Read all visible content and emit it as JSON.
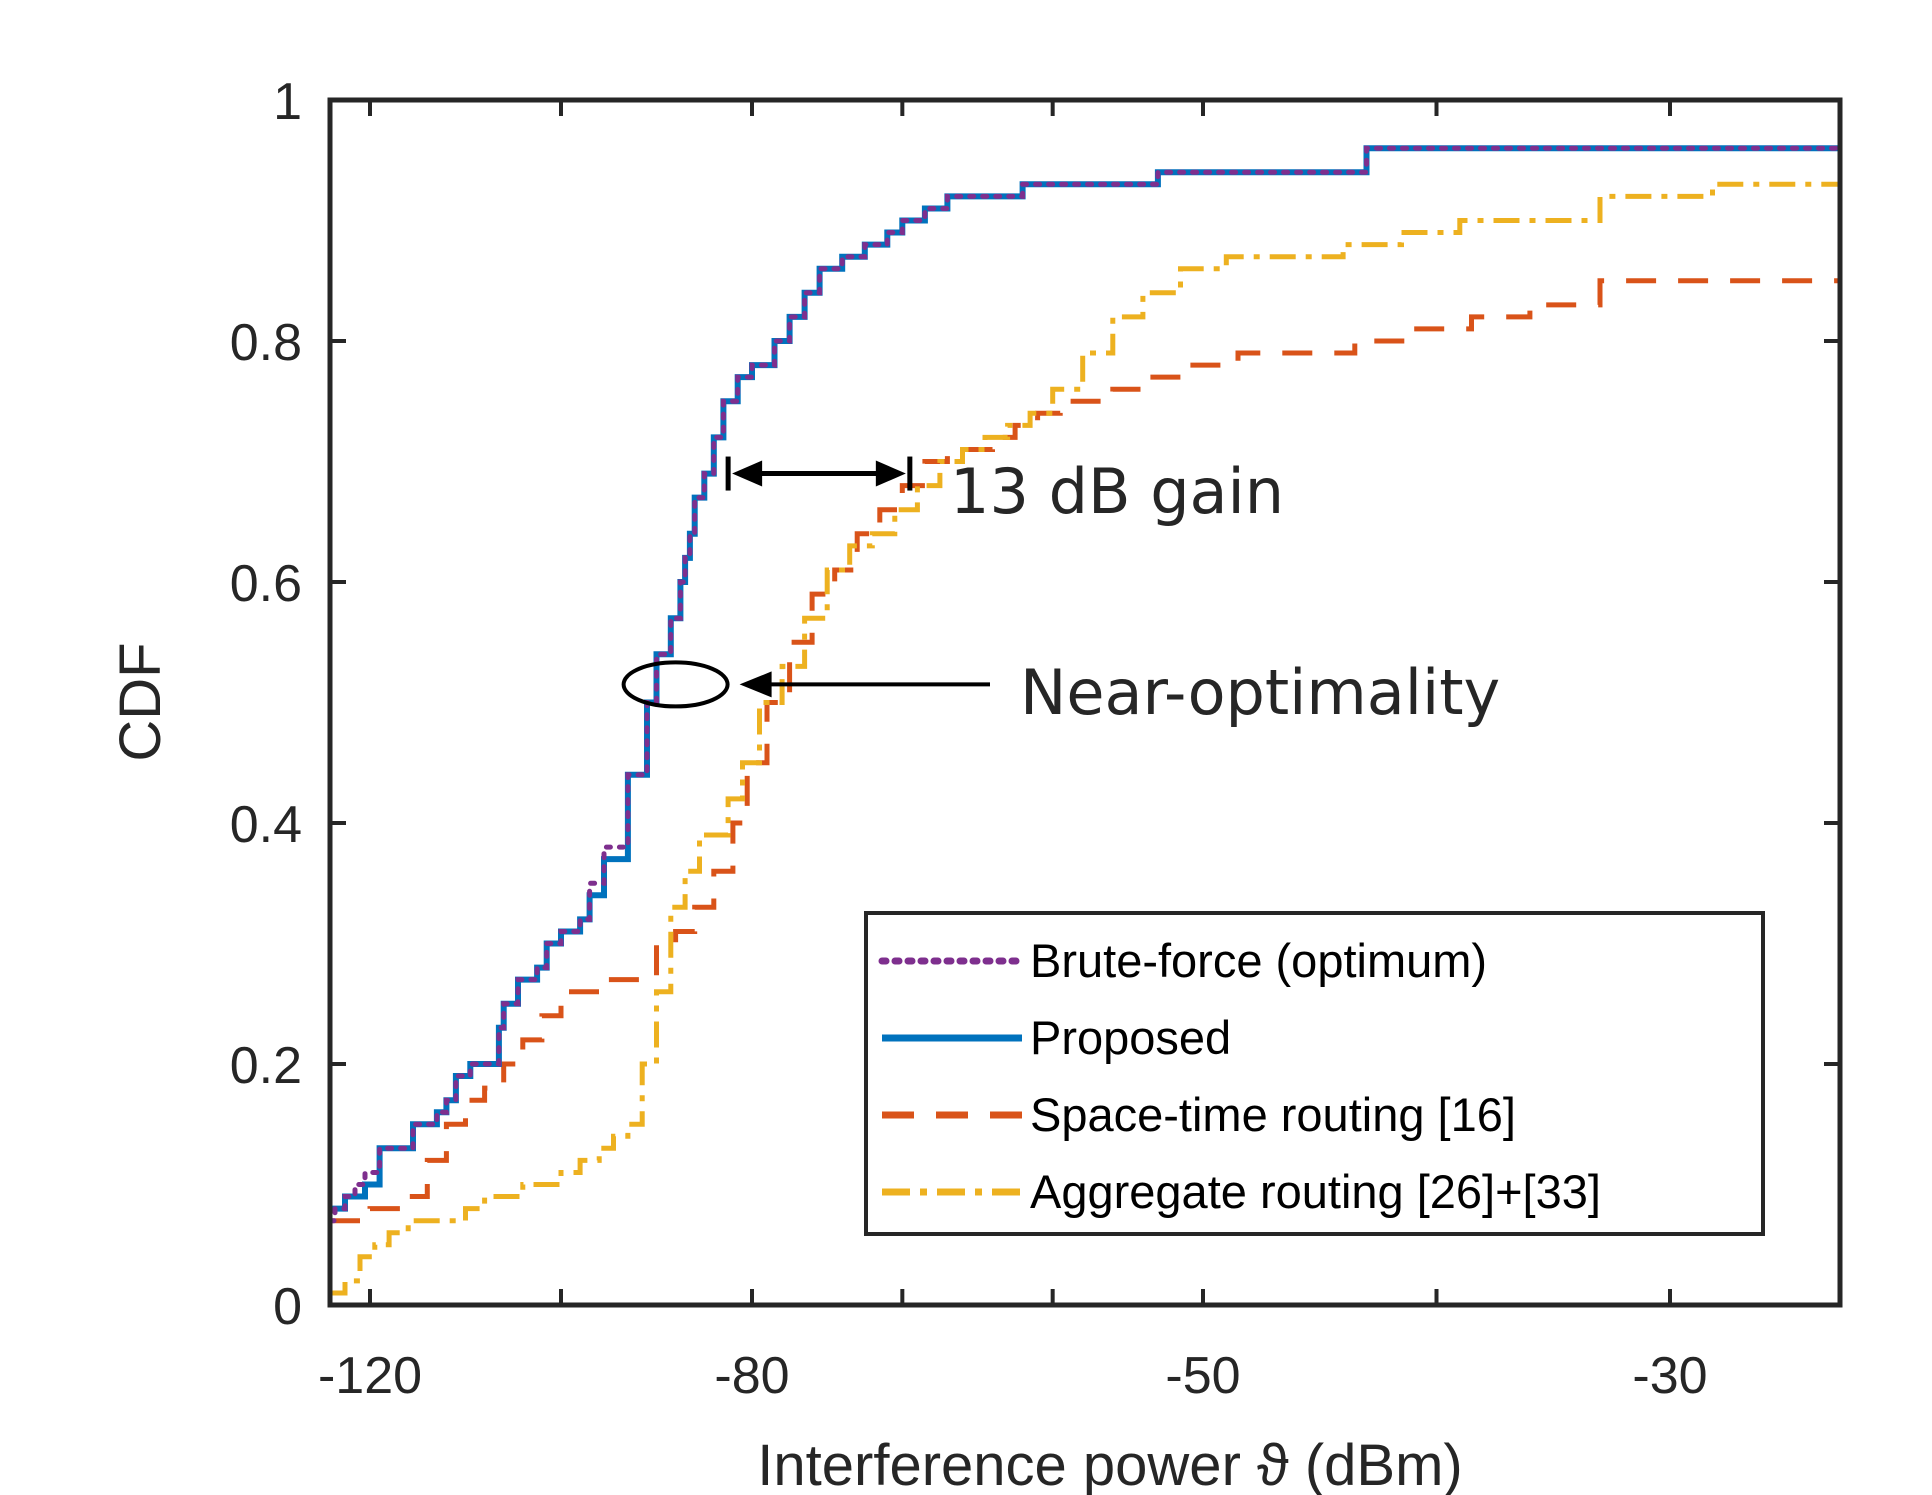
{
  "chart_data": {
    "type": "line",
    "title": "",
    "xlabel": "Interference power ϑ (dBm)",
    "ylabel": "CDF",
    "xlim": [
      -124,
      -22
    ],
    "ylim": [
      0,
      1
    ],
    "x_ticks": [
      -120,
      -80,
      -50,
      -30
    ],
    "x_tick_labels": [
      "-120",
      "-80",
      "-50",
      "-30"
    ],
    "y_ticks": [
      0,
      0.2,
      0.4,
      0.6,
      0.8,
      1
    ],
    "y_tick_labels": [
      "0",
      "0.2",
      "0.4",
      "0.6",
      "0.8",
      "1"
    ],
    "grid": false,
    "legend_position": "bottom-right",
    "annotations": [
      {
        "text": "13 dB gain",
        "from": [
          -82.5,
          0.69
        ],
        "to": [
          -69.5,
          0.69
        ]
      },
      {
        "text": "Near-optimality",
        "target": [
          -88,
          0.515
        ]
      }
    ],
    "series": [
      {
        "name": "Brute-force (optimum)",
        "style": "dotted",
        "color": "#7E2F8E",
        "x": [
          -124,
          -123.5,
          -122.5,
          -121.5,
          -120.5,
          -119,
          -117.5,
          -115.5,
          -113,
          -112,
          -111,
          -109.5,
          -106.5,
          -106,
          -104.5,
          -102.5,
          -101.5,
          -100,
          -98,
          -97,
          -95.5,
          -93,
          -91,
          -90,
          -88.5,
          -87.5,
          -87,
          -86.5,
          -86,
          -85,
          -84,
          -83,
          -81.5,
          -80,
          -78.5,
          -77.5,
          -76.5,
          -75.5,
          -74,
          -72.5,
          -71,
          -70,
          -68.5,
          -67,
          -65,
          -62,
          -60,
          -57,
          -53,
          -48,
          -43,
          -40.5,
          -37,
          -22
        ],
        "y": [
          0.07,
          0.08,
          0.09,
          0.1,
          0.11,
          0.13,
          0.13,
          0.15,
          0.16,
          0.17,
          0.19,
          0.2,
          0.23,
          0.25,
          0.27,
          0.28,
          0.3,
          0.31,
          0.32,
          0.35,
          0.38,
          0.44,
          0.5,
          0.54,
          0.57,
          0.6,
          0.62,
          0.64,
          0.67,
          0.69,
          0.72,
          0.75,
          0.77,
          0.78,
          0.8,
          0.82,
          0.84,
          0.86,
          0.87,
          0.88,
          0.89,
          0.9,
          0.91,
          0.92,
          0.92,
          0.93,
          0.93,
          0.93,
          0.94,
          0.94,
          0.96,
          0.96,
          0.96,
          0.96
        ]
      },
      {
        "name": "Proposed",
        "style": "solid",
        "color": "#0072BD",
        "x": [
          -124,
          -123.5,
          -122.5,
          -121.5,
          -120.5,
          -119,
          -117.5,
          -115.5,
          -113,
          -112,
          -111,
          -109.5,
          -106.5,
          -106,
          -104.5,
          -102.5,
          -101.5,
          -100,
          -98,
          -97,
          -95.5,
          -93,
          -91,
          -90,
          -88.5,
          -87.5,
          -87,
          -86.5,
          -86,
          -85,
          -84,
          -83,
          -81.5,
          -80,
          -78.5,
          -77.5,
          -76.5,
          -75.5,
          -74,
          -72.5,
          -71,
          -70,
          -68.5,
          -67,
          -65,
          -62,
          -60,
          -57,
          -53,
          -48,
          -43,
          -40.5,
          -37,
          -22
        ],
        "y": [
          0.08,
          0.08,
          0.09,
          0.09,
          0.1,
          0.13,
          0.13,
          0.15,
          0.16,
          0.17,
          0.19,
          0.2,
          0.23,
          0.25,
          0.27,
          0.28,
          0.3,
          0.31,
          0.32,
          0.34,
          0.37,
          0.44,
          0.5,
          0.54,
          0.57,
          0.6,
          0.62,
          0.64,
          0.67,
          0.69,
          0.72,
          0.75,
          0.77,
          0.78,
          0.8,
          0.82,
          0.84,
          0.86,
          0.87,
          0.88,
          0.89,
          0.9,
          0.91,
          0.92,
          0.92,
          0.93,
          0.93,
          0.93,
          0.94,
          0.94,
          0.96,
          0.96,
          0.96,
          0.96
        ]
      },
      {
        "name": "Space-time routing [16]",
        "style": "dashed",
        "color": "#D95319",
        "x": [
          -124,
          -122,
          -120,
          -118,
          -116,
          -114,
          -112,
          -110,
          -108,
          -106,
          -104,
          -102,
          -100,
          -98,
          -96,
          -94,
          -92,
          -90,
          -88,
          -86,
          -84,
          -82,
          -80.5,
          -79,
          -77.5,
          -76,
          -74.5,
          -73,
          -71.5,
          -70,
          -68.5,
          -67,
          -65.5,
          -64,
          -62.5,
          -61,
          -59.5,
          -58,
          -56,
          -53.5,
          -51,
          -48.5,
          -46,
          -43.5,
          -41,
          -38.5,
          -36,
          -33,
          -22
        ],
        "y": [
          0.07,
          0.07,
          0.08,
          0.08,
          0.09,
          0.12,
          0.15,
          0.17,
          0.18,
          0.2,
          0.22,
          0.24,
          0.26,
          0.26,
          0.27,
          0.27,
          0.27,
          0.3,
          0.31,
          0.33,
          0.36,
          0.4,
          0.45,
          0.5,
          0.55,
          0.59,
          0.61,
          0.64,
          0.66,
          0.68,
          0.7,
          0.71,
          0.71,
          0.72,
          0.73,
          0.74,
          0.75,
          0.75,
          0.76,
          0.77,
          0.78,
          0.79,
          0.79,
          0.8,
          0.81,
          0.82,
          0.83,
          0.85,
          0.86
        ]
      },
      {
        "name": "Aggregate routing [26]+[33]",
        "style": "dashdot",
        "color": "#EDB120",
        "x": [
          -124,
          -122.5,
          -121,
          -119.5,
          -118,
          -116,
          -114,
          -112,
          -110,
          -108,
          -106,
          -104,
          -102,
          -100,
          -98,
          -96,
          -94.5,
          -93,
          -91.5,
          -90,
          -88.5,
          -87,
          -85.5,
          -84,
          -82.5,
          -81,
          -79.5,
          -78,
          -76.5,
          -75,
          -73.5,
          -72,
          -70.5,
          -69,
          -67.5,
          -66,
          -64.5,
          -63,
          -61.5,
          -60,
          -58,
          -56,
          -54,
          -51.5,
          -49,
          -46.5,
          -44,
          -41.5,
          -39,
          -36,
          -33,
          -28,
          -22
        ],
        "y": [
          0.01,
          0.02,
          0.04,
          0.05,
          0.06,
          0.07,
          0.07,
          0.07,
          0.08,
          0.09,
          0.09,
          0.1,
          0.1,
          0.11,
          0.12,
          0.13,
          0.14,
          0.15,
          0.2,
          0.26,
          0.33,
          0.36,
          0.39,
          0.39,
          0.42,
          0.45,
          0.5,
          0.53,
          0.57,
          0.61,
          0.63,
          0.64,
          0.66,
          0.68,
          0.7,
          0.71,
          0.72,
          0.73,
          0.74,
          0.76,
          0.79,
          0.82,
          0.84,
          0.86,
          0.87,
          0.87,
          0.88,
          0.89,
          0.9,
          0.9,
          0.92,
          0.93,
          0.94
        ]
      }
    ]
  }
}
